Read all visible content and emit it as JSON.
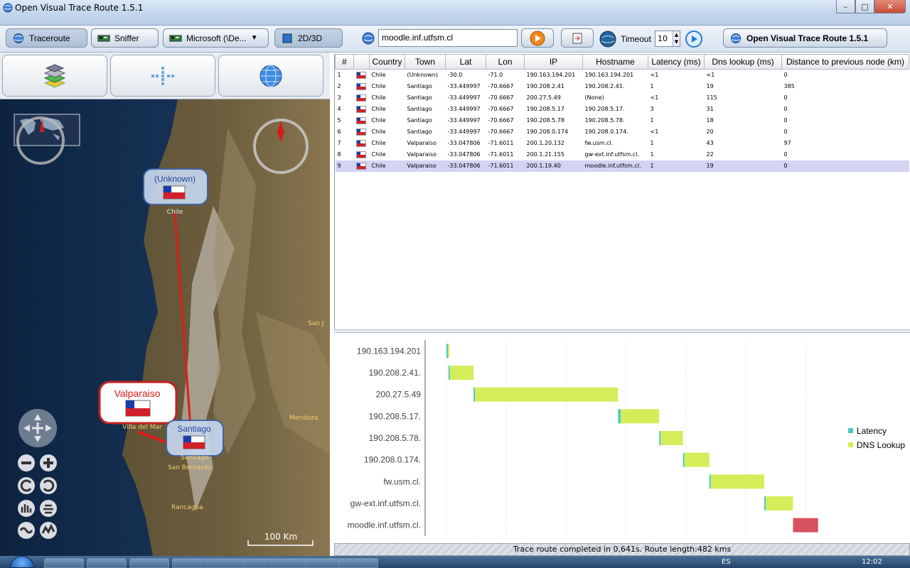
{
  "window": {
    "title": "Open Visual Trace Route 1.5.1",
    "minimize": "–",
    "maximize": "□",
    "close": "✕"
  },
  "toolbar": {
    "traceroute": "Traceroute",
    "sniffer": "Sniffer",
    "interface": "Microsoft (\\De...",
    "mode": "2D/3D",
    "url_value": "moodle.inf.utfsm.cl",
    "timeout_label": "Timeout",
    "timeout_value": "10",
    "about": "Open Visual Trace Route 1.5.1"
  },
  "map": {
    "nodes": [
      {
        "label": "(Unknown)",
        "sub": "Chile"
      },
      {
        "label": "Valparaiso",
        "sub": "Villa del Mar"
      },
      {
        "label": "Santiago",
        "sub": "Santiago"
      }
    ],
    "places": [
      "San J",
      "Mendoza",
      "San Bernardo",
      "Rancagua"
    ],
    "scale_label": "100 Km"
  },
  "table": {
    "headers": [
      "#",
      "",
      "Country",
      "Town",
      "Lat",
      "Lon",
      "IP",
      "Hostname",
      "Latency (ms)",
      "Dns lookup (ms)",
      "Distance to previous node (km)"
    ],
    "rows": [
      [
        "1",
        "Chile",
        "(Unknown)",
        "-30.0",
        "-71.0",
        "190.163.194.201",
        "190.163.194.201",
        "<1",
        "<1",
        "0"
      ],
      [
        "2",
        "Chile",
        "Santiago",
        "-33.449997",
        "-70.6667",
        "190.208.2.41",
        "190.208.2.41.",
        "1",
        "19",
        "385"
      ],
      [
        "3",
        "Chile",
        "Santiago",
        "-33.449997",
        "-70.6667",
        "200.27.5.49",
        "(None)",
        "<1",
        "115",
        "0"
      ],
      [
        "4",
        "Chile",
        "Santiago",
        "-33.449997",
        "-70.6667",
        "190.208.5.17",
        "190.208.5.17.",
        "3",
        "31",
        "0"
      ],
      [
        "5",
        "Chile",
        "Santiago",
        "-33.449997",
        "-70.6667",
        "190.208.5.78",
        "190.208.5.78.",
        "1",
        "18",
        "0"
      ],
      [
        "6",
        "Chile",
        "Santiago",
        "-33.449997",
        "-70.6667",
        "190.208.0.174",
        "190.208.0.174.",
        "<1",
        "20",
        "0"
      ],
      [
        "7",
        "Chile",
        "Valparaiso",
        "-33.047806",
        "-71.6011",
        "200.1.20.132",
        "fw.usm.cl.",
        "1",
        "43",
        "97"
      ],
      [
        "8",
        "Chile",
        "Valparaiso",
        "-33.047806",
        "-71.6011",
        "200.1.21.155",
        "gw-ext.inf.utfsm.cl.",
        "1",
        "22",
        "0"
      ],
      [
        "9",
        "Chile",
        "Valparaiso",
        "-33.047806",
        "-71.6011",
        "200.1.19.40",
        "moodle.inf.utfsm.cl.",
        "1",
        "19",
        "0"
      ]
    ],
    "selected_row": 9
  },
  "chart_data": {
    "type": "bar",
    "orientation": "horizontal-gantt",
    "categories": [
      "190.163.194.201",
      "190.208.2.41.",
      "200.27.5.49",
      "190.208.5.17.",
      "190.208.5.78.",
      "190.208.0.174.",
      "fw.usm.cl.",
      "gw-ext.inf.utfsm.cl.",
      "moodle.inf.utfsm.cl."
    ],
    "series": [
      {
        "name": "Latency",
        "values": [
          0.5,
          1,
          0.5,
          3,
          1,
          0.5,
          1,
          1,
          1
        ],
        "color": "#4cc6c9"
      },
      {
        "name": "DNS Lookup",
        "values": [
          0.5,
          19,
          115,
          31,
          18,
          20,
          43,
          22,
          19
        ],
        "color": "#d4ee5a"
      }
    ],
    "selected_color": "#d9525f",
    "selected_index": 8,
    "xlim": [
      0,
      310
    ],
    "grid": true,
    "legend": "right"
  },
  "status": {
    "text": "Trace route completed in 0,641s. Route length:482 kms"
  },
  "taskbar": {
    "lang": "ES",
    "time": "12:02"
  },
  "colors": {
    "route_line": "#e01b1b",
    "selection": "#d3d3f3"
  }
}
